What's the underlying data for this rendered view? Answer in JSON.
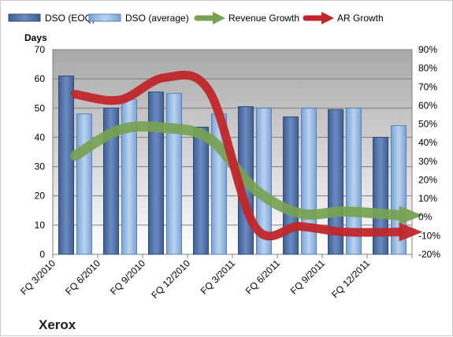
{
  "chart_data": {
    "type": "bar",
    "categories": [
      "FQ 3/2010",
      "FQ 6/2010",
      "FQ 9/2010",
      "FQ 12/2010",
      "FQ 3/2011",
      "FQ 6/2011",
      "FQ 9/2011",
      "FQ 12/2011"
    ],
    "series": [
      {
        "name": "DSO (EOQ)",
        "type": "bar",
        "axis": "left",
        "color": "#4f6fa3",
        "values": [
          61,
          50,
          55.5,
          43.5,
          50.5,
          47,
          49.5,
          40
        ]
      },
      {
        "name": "DSO (average)",
        "type": "bar",
        "axis": "left",
        "color": "#8fb4e0",
        "values": [
          48,
          53,
          55,
          48,
          50,
          50,
          50,
          44
        ]
      },
      {
        "name": "Revenue Growth",
        "type": "line",
        "axis": "right",
        "color": "#77a251",
        "values": [
          33,
          47,
          48,
          42,
          15,
          2,
          3,
          1
        ]
      },
      {
        "name": "AR Growth",
        "type": "line",
        "axis": "right",
        "color": "#c0262a",
        "values": [
          66,
          63,
          75,
          67,
          -5,
          -5,
          -8,
          -8
        ]
      }
    ],
    "y_left": {
      "title": "Days",
      "min": 0,
      "max": 70,
      "ticks": [
        "0",
        "10",
        "20",
        "30",
        "40",
        "50",
        "60",
        "70"
      ]
    },
    "y_right": {
      "min": -20,
      "max": 90,
      "ticks": [
        "-20%",
        "-10%",
        "0%",
        "10%",
        "20%",
        "30%",
        "40%",
        "50%",
        "60%",
        "70%",
        "80%",
        "90%"
      ]
    },
    "grid": true,
    "legend_placement": "top",
    "company": "Xerox"
  }
}
